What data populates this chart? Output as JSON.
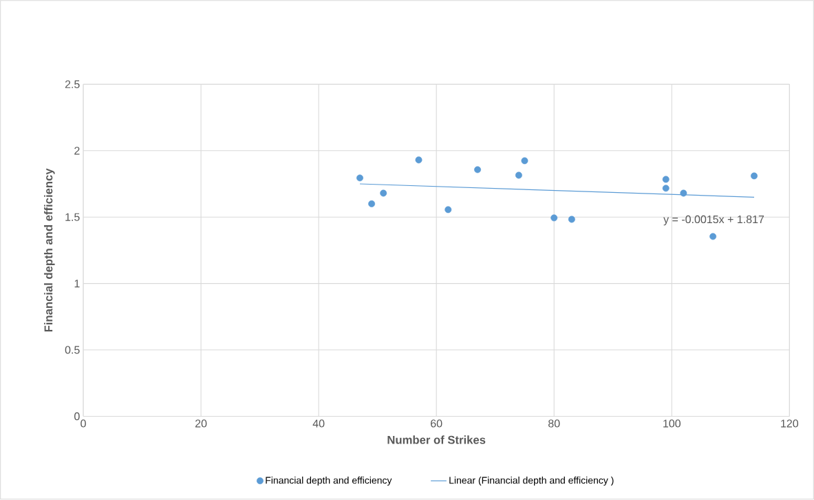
{
  "chart_data": {
    "type": "scatter",
    "xlabel": "Number of Strikes",
    "ylabel": "Financial depth and efficiency",
    "xlim": [
      0,
      120
    ],
    "xticks": [
      0,
      20,
      40,
      60,
      80,
      100,
      120
    ],
    "ylim": [
      0,
      2.5
    ],
    "yticks": [
      0,
      0.5,
      1,
      1.5,
      2,
      2.5
    ],
    "grid": true,
    "legend": "bottom",
    "series": [
      {
        "name": "Financial depth and efficiency",
        "marker": "circle",
        "color": "#5b9bd5",
        "x": [
          47,
          49,
          51,
          57,
          62,
          67,
          74,
          75,
          80,
          83,
          99,
          99,
          102,
          107,
          114
        ],
        "values": [
          1.795,
          1.6,
          1.68,
          1.93,
          1.556,
          1.857,
          1.815,
          1.924,
          1.494,
          1.483,
          1.784,
          1.717,
          1.68,
          1.354,
          1.81
        ]
      },
      {
        "name": "Linear (Financial depth and efficiency )",
        "type": "line",
        "marker": "none",
        "line_style": "solid",
        "color": "#5b9bd5",
        "x": [
          47,
          114
        ],
        "values": [
          1.75,
          1.65
        ]
      }
    ],
    "annotations": [
      "y = -0.0015x + 1.817"
    ]
  }
}
